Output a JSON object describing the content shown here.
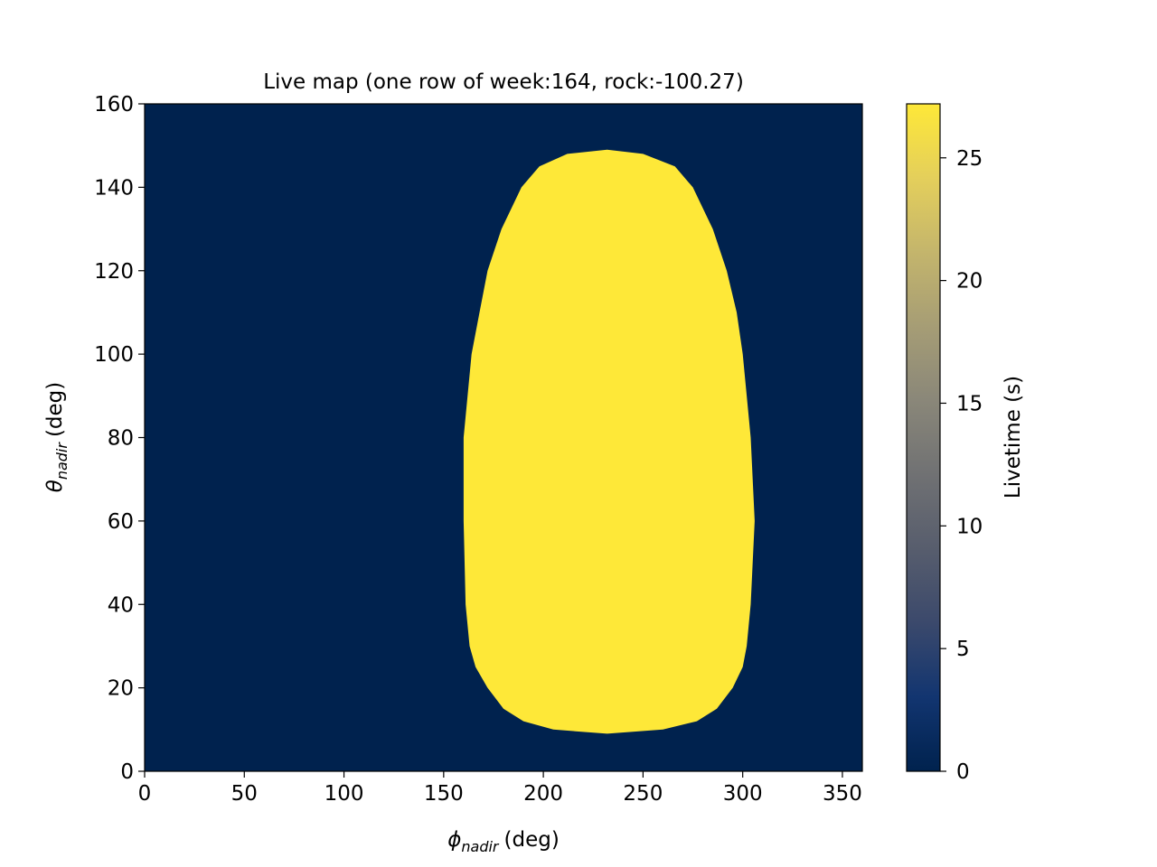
{
  "chart_data": {
    "type": "heatmap",
    "title": "Live map (one row of week:164, rock:-100.27)",
    "xlabel": {
      "symbol": "ϕ",
      "subscript": "nadir",
      "unit": "(deg)"
    },
    "ylabel": {
      "symbol": "θ",
      "subscript": "nadir",
      "unit": "(deg)"
    },
    "xlim": [
      0,
      360
    ],
    "ylim": [
      0,
      160
    ],
    "xticks": [
      0,
      50,
      100,
      150,
      200,
      250,
      300,
      350
    ],
    "yticks": [
      0,
      20,
      40,
      60,
      80,
      100,
      120,
      140,
      160
    ],
    "colorbar": {
      "label": "Livetime (s)",
      "range": [
        0,
        27.2
      ],
      "ticks": [
        0,
        5,
        10,
        15,
        20,
        25
      ],
      "colormap": "cividis",
      "colormap_stops": [
        "#00224e",
        "#123570",
        "#3b496c",
        "#575d6d",
        "#707173",
        "#8a8779",
        "#a69d75",
        "#c4b56c",
        "#e4cf5b",
        "#fee838"
      ]
    },
    "grid": false,
    "background_value": 0,
    "region_value": 27,
    "region_boundary": [
      {
        "theta": 9,
        "phi_min": 232,
        "phi_max": 232
      },
      {
        "theta": 10,
        "phi_min": 205,
        "phi_max": 260
      },
      {
        "theta": 12,
        "phi_min": 190,
        "phi_max": 277
      },
      {
        "theta": 15,
        "phi_min": 180,
        "phi_max": 287
      },
      {
        "theta": 20,
        "phi_min": 172,
        "phi_max": 295
      },
      {
        "theta": 25,
        "phi_min": 166,
        "phi_max": 300
      },
      {
        "theta": 30,
        "phi_min": 163,
        "phi_max": 302
      },
      {
        "theta": 40,
        "phi_min": 161,
        "phi_max": 304
      },
      {
        "theta": 60,
        "phi_min": 160,
        "phi_max": 306
      },
      {
        "theta": 80,
        "phi_min": 160,
        "phi_max": 304
      },
      {
        "theta": 90,
        "phi_min": 162,
        "phi_max": 302
      },
      {
        "theta": 100,
        "phi_min": 164,
        "phi_max": 300
      },
      {
        "theta": 110,
        "phi_min": 168,
        "phi_max": 297
      },
      {
        "theta": 120,
        "phi_min": 172,
        "phi_max": 292
      },
      {
        "theta": 130,
        "phi_min": 179,
        "phi_max": 285
      },
      {
        "theta": 140,
        "phi_min": 189,
        "phi_max": 275
      },
      {
        "theta": 145,
        "phi_min": 198,
        "phi_max": 266
      },
      {
        "theta": 148,
        "phi_min": 212,
        "phi_max": 250
      },
      {
        "theta": 149,
        "phi_min": 232,
        "phi_max": 232
      }
    ]
  }
}
